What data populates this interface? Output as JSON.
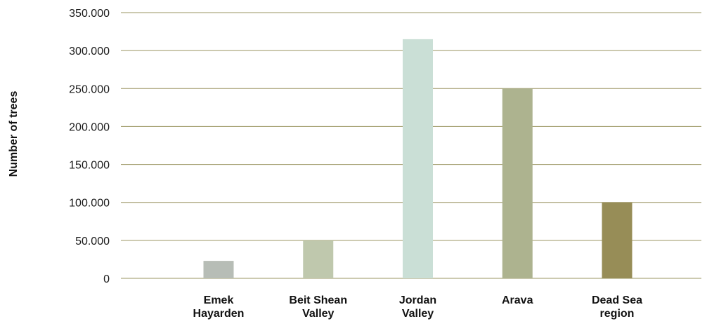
{
  "chart_data": {
    "type": "bar",
    "ylabel": "Number of trees",
    "xlabel": "",
    "title": "",
    "ylim": [
      0,
      350000
    ],
    "y_ticks": [
      0,
      50000,
      100000,
      150000,
      200000,
      250000,
      300000,
      350000
    ],
    "y_tick_labels": [
      "0",
      "50.000",
      "100.000",
      "150.000",
      "200.000",
      "250.000",
      "300.000",
      "350.000"
    ],
    "grid": "horizontal",
    "categories": [
      [
        "Emek",
        "Hayarden"
      ],
      [
        "Beit Shean",
        "Valley"
      ],
      [
        "Jordan",
        "Valley"
      ],
      [
        "Arava"
      ],
      [
        "Dead Sea",
        "region"
      ]
    ],
    "values": [
      23000,
      50000,
      315000,
      250000,
      100000
    ],
    "colors": [
      "#b7bdb6",
      "#bfc8ad",
      "#cadfd6",
      "#adb38f",
      "#978d57"
    ],
    "grid_color": "#9a9460"
  }
}
